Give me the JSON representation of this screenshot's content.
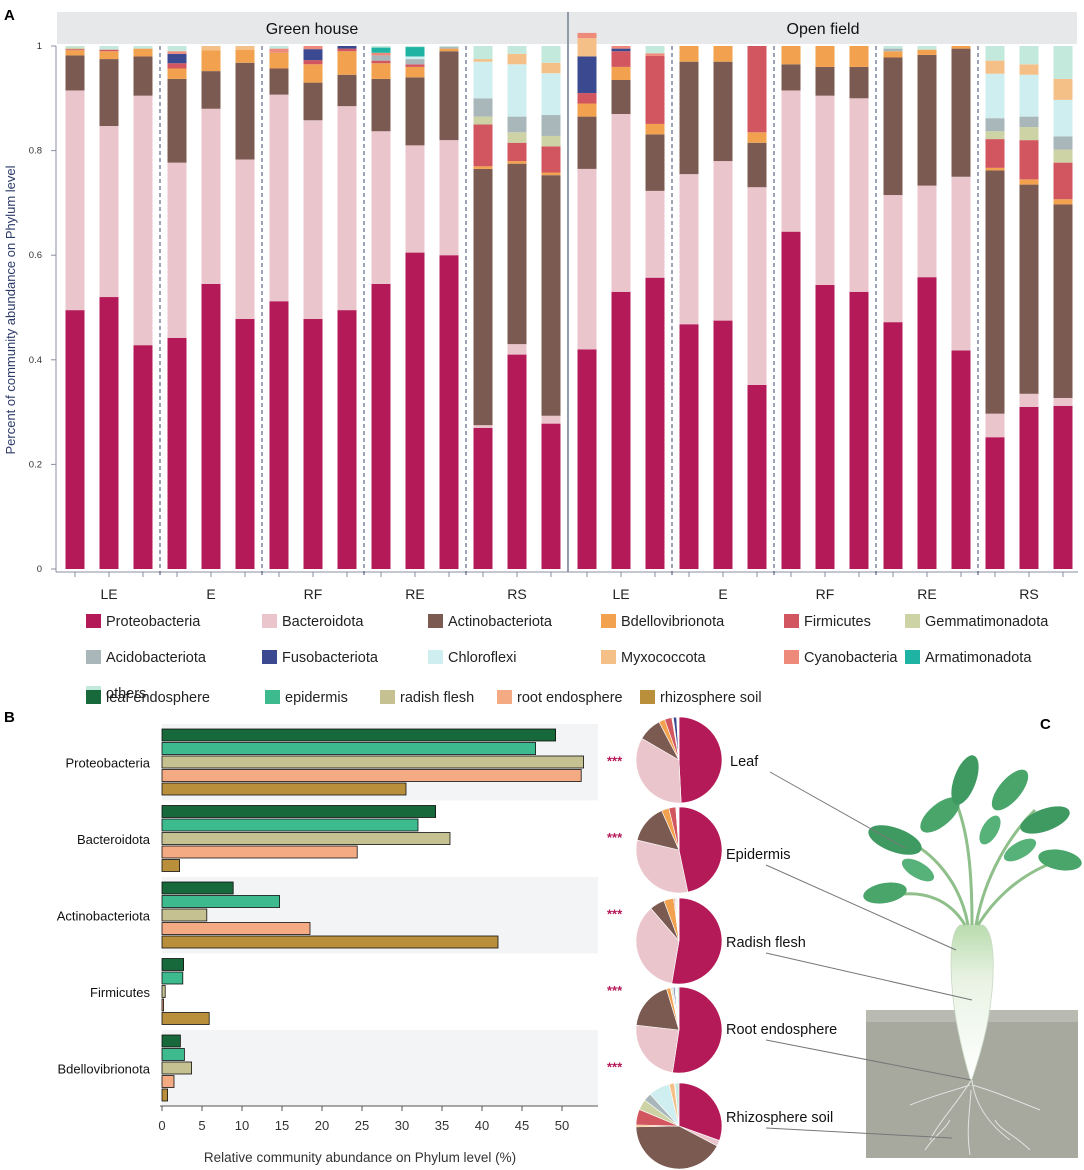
{
  "panels": {
    "a": "A",
    "b": "B",
    "c": "C"
  },
  "chart_data": [
    {
      "type": "bar",
      "subtype": "stacked-100",
      "panel": "A",
      "ylabel": "Percent of community abundance on Phylum level",
      "ylim": [
        0,
        1
      ],
      "yticks": [
        "0",
        "0.2",
        "0.4",
        "0.6",
        "0.8",
        "1"
      ],
      "ytick_values": [
        0,
        0.2,
        0.4,
        0.6,
        0.8,
        1
      ],
      "legend_position": "bottom",
      "facets": [
        {
          "name": "Green house",
          "groups": [
            {
              "label": "LE",
              "bars": [
                [
                  0.495,
                  0.42,
                  0.067,
                  0.01,
                  0.002,
                  0.003,
                  0,
                  0,
                  0,
                  0,
                  0,
                  0,
                  0.003
                ],
                [
                  0.52,
                  0.327,
                  0.128,
                  0.015,
                  0.003,
                  0,
                  0,
                  0,
                  0,
                  0,
                  0,
                  0,
                  0.007
                ],
                [
                  0.428,
                  0.477,
                  0.075,
                  0.015,
                  0,
                  0,
                  0,
                  0,
                  0,
                  0,
                  0,
                  0,
                  0.005
                ]
              ]
            },
            {
              "label": "E",
              "bars": [
                [
                  0.442,
                  0.335,
                  0.16,
                  0.02,
                  0.01,
                  0,
                  0,
                  0.018,
                  0,
                  0,
                  0.005,
                  0,
                  0.01
                ],
                [
                  0.545,
                  0.335,
                  0.072,
                  0.04,
                  0,
                  0,
                  0,
                  0,
                  0,
                  0.008,
                  0,
                  0,
                  0
                ],
                [
                  0.478,
                  0.305,
                  0.185,
                  0.025,
                  0,
                  0,
                  0,
                  0,
                  0,
                  0.007,
                  0,
                  0,
                  0
                ]
              ]
            },
            {
              "label": "RF",
              "bars": [
                [
                  0.512,
                  0.395,
                  0.05,
                  0.03,
                  0,
                  0,
                  0,
                  0,
                  0,
                  0,
                  0.008,
                  0,
                  0.005
                ],
                [
                  0.478,
                  0.38,
                  0.072,
                  0.035,
                  0.008,
                  0,
                  0,
                  0.021,
                  0,
                  0,
                  0.006,
                  0,
                  0
                ],
                [
                  0.495,
                  0.39,
                  0.06,
                  0.045,
                  0.005,
                  0,
                  0,
                  0.005,
                  0,
                  0,
                  0,
                  0,
                  0
                ]
              ]
            },
            {
              "label": "RE",
              "bars": [
                [
                  0.545,
                  0.292,
                  0.1,
                  0.03,
                  0.005,
                  0,
                  0.01,
                  0,
                  0,
                  0,
                  0.005,
                  0.01,
                  0.003
                ],
                [
                  0.605,
                  0.205,
                  0.13,
                  0.02,
                  0.005,
                  0,
                  0.01,
                  0,
                  0.005,
                  0,
                  0,
                  0.018,
                  0.002
                ],
                [
                  0.6,
                  0.22,
                  0.17,
                  0.005,
                  0,
                  0,
                  0.003,
                  0,
                  0,
                  0,
                  0,
                  0,
                  0.002
                ]
              ]
            },
            {
              "label": "RS",
              "bars": [
                [
                  0.27,
                  0.005,
                  0.49,
                  0.005,
                  0.08,
                  0.015,
                  0.035,
                  0,
                  0.07,
                  0.005,
                  0,
                  0,
                  0.025
                ],
                [
                  0.41,
                  0.02,
                  0.345,
                  0.005,
                  0.035,
                  0.02,
                  0.03,
                  0,
                  0.1,
                  0.02,
                  0,
                  0,
                  0.015
                ],
                [
                  0.278,
                  0.015,
                  0.46,
                  0.005,
                  0.05,
                  0.02,
                  0.04,
                  0,
                  0.08,
                  0.02,
                  0,
                  0,
                  0.032
                ]
              ]
            }
          ]
        },
        {
          "name": "Open field",
          "groups": [
            {
              "label": "LE",
              "bars": [
                [
                  0.42,
                  0.345,
                  0.1,
                  0.025,
                  0.02,
                  0,
                  0,
                  0.07,
                  0,
                  0.035,
                  0.01,
                  0,
                  0
                ],
                [
                  0.53,
                  0.34,
                  0.065,
                  0.025,
                  0.03,
                  0,
                  0,
                  0.005,
                  0,
                  0,
                  0.005,
                  0,
                  0
                ],
                [
                  0.557,
                  0.166,
                  0.108,
                  0.02,
                  0.13,
                  0,
                  0,
                  0,
                  0,
                  0,
                  0.005,
                  0,
                  0.014
                ]
              ]
            },
            {
              "label": "E",
              "bars": [
                [
                  0.468,
                  0.287,
                  0.215,
                  0.03,
                  0,
                  0,
                  0,
                  0,
                  0,
                  0,
                  0,
                  0,
                  0
                ],
                [
                  0.475,
                  0.305,
                  0.19,
                  0.03,
                  0,
                  0,
                  0,
                  0,
                  0,
                  0,
                  0,
                  0,
                  0
                ],
                [
                  0.352,
                  0.378,
                  0.085,
                  0.02,
                  0.165,
                  0,
                  0,
                  0,
                  0,
                  0,
                  0,
                  0,
                  0
                ]
              ]
            },
            {
              "label": "RF",
              "bars": [
                [
                  0.645,
                  0.27,
                  0.05,
                  0.035,
                  0,
                  0,
                  0,
                  0,
                  0,
                  0,
                  0,
                  0,
                  0
                ],
                [
                  0.543,
                  0.362,
                  0.055,
                  0.04,
                  0,
                  0,
                  0,
                  0,
                  0,
                  0,
                  0,
                  0,
                  0
                ],
                [
                  0.53,
                  0.37,
                  0.06,
                  0.04,
                  0,
                  0,
                  0,
                  0,
                  0,
                  0,
                  0,
                  0,
                  0
                ]
              ]
            },
            {
              "label": "RE",
              "bars": [
                [
                  0.472,
                  0.243,
                  0.263,
                  0.012,
                  0,
                  0,
                  0.005,
                  0,
                  0,
                  0,
                  0,
                  0,
                  0.005
                ],
                [
                  0.558,
                  0.175,
                  0.25,
                  0.01,
                  0,
                  0,
                  0,
                  0,
                  0,
                  0,
                  0,
                  0,
                  0.007
                ],
                [
                  0.418,
                  0.332,
                  0.245,
                  0.005,
                  0,
                  0,
                  0,
                  0,
                  0,
                  0,
                  0,
                  0,
                  0
                ]
              ]
            },
            {
              "label": "RS",
              "bars": [
                [
                  0.252,
                  0.045,
                  0.465,
                  0.005,
                  0.055,
                  0.015,
                  0.025,
                  0,
                  0.085,
                  0.025,
                  0,
                  0,
                  0.028
                ],
                [
                  0.31,
                  0.025,
                  0.4,
                  0.01,
                  0.075,
                  0.025,
                  0.02,
                  0,
                  0.08,
                  0.02,
                  0,
                  0,
                  0.035
                ],
                [
                  0.312,
                  0.015,
                  0.37,
                  0.01,
                  0.07,
                  0.025,
                  0.025,
                  0,
                  0.07,
                  0.04,
                  0,
                  0,
                  0.063
                ]
              ]
            }
          ]
        }
      ],
      "series": [
        {
          "name": "Proteobacteria",
          "color": "#b51a58"
        },
        {
          "name": "Bacteroidota",
          "color": "#eac5cc"
        },
        {
          "name": "Actinobacteriota",
          "color": "#7b5a52"
        },
        {
          "name": "Bdellovibrionota",
          "color": "#f2a24e"
        },
        {
          "name": "Firmicutes",
          "color": "#d2565f"
        },
        {
          "name": "Gemmatimonadota",
          "color": "#cdd3a4"
        },
        {
          "name": "Acidobacteriota",
          "color": "#a9b7ba"
        },
        {
          "name": "Fusobacteriota",
          "color": "#3b4990"
        },
        {
          "name": "Chloroflexi",
          "color": "#cfeeef"
        },
        {
          "name": "Myxococcota",
          "color": "#f5c088"
        },
        {
          "name": "Cyanobacteria",
          "color": "#ee8a7a"
        },
        {
          "name": "Armatimonadota",
          "color": "#1fb3a4"
        },
        {
          "name": "others",
          "color": "#c3e8dc"
        }
      ]
    },
    {
      "type": "bar",
      "subtype": "grouped-horizontal",
      "panel": "B",
      "xlabel": "Relative community abundance on Phylum level (%)",
      "xlim": [
        0,
        54
      ],
      "xticks": [
        0,
        5,
        10,
        15,
        20,
        25,
        30,
        35,
        40,
        45,
        50
      ],
      "categories": [
        "Proteobacteria",
        "Bacteroidota",
        "Actinobacteriota",
        "Firmicutes",
        "Bdellovibrionota"
      ],
      "significance": [
        "***",
        "***",
        "***",
        "***",
        "***"
      ],
      "series": [
        {
          "name": "leaf endosphere",
          "color": "#17683a",
          "values": [
            49.2,
            34.2,
            8.9,
            2.7,
            2.3
          ]
        },
        {
          "name": "epidermis",
          "color": "#3dbb8f",
          "values": [
            46.7,
            32.0,
            14.7,
            2.6,
            2.8
          ]
        },
        {
          "name": "radish flesh",
          "color": "#c6c191",
          "values": [
            52.7,
            36.0,
            5.6,
            0.4,
            3.7
          ]
        },
        {
          "name": "root endosphere",
          "color": "#f4ab84",
          "values": [
            52.4,
            24.4,
            18.5,
            0.2,
            1.5
          ]
        },
        {
          "name": "rhizosphere soil",
          "color": "#b98f3c",
          "values": [
            30.5,
            2.2,
            42.0,
            5.9,
            0.7
          ]
        }
      ]
    },
    {
      "type": "pie",
      "panel": "C",
      "pies": [
        {
          "label": "Leaf",
          "values": [
            49.2,
            34.2,
            8.9,
            2.3,
            2.7,
            0.3,
            0.3,
            1.2,
            0.2,
            0.3,
            0.2,
            0.1,
            0.1
          ]
        },
        {
          "label": "Epidermis",
          "values": [
            46.7,
            32.0,
            14.7,
            2.8,
            2.6,
            0.3,
            0.3,
            0.2,
            0.2,
            0.1,
            0.1,
            0,
            0
          ]
        },
        {
          "label": "Radish flesh",
          "values": [
            52.7,
            36.0,
            5.6,
            3.7,
            0.4,
            0.4,
            0.3,
            0.3,
            0.2,
            0.2,
            0.1,
            0.1,
            0
          ]
        },
        {
          "label": "Root endosphere",
          "values": [
            52.4,
            24.4,
            18.5,
            1.5,
            0.2,
            0.5,
            0.4,
            0.5,
            0.4,
            0.2,
            0.2,
            0.2,
            0.6
          ]
        },
        {
          "label": "Rhizosphere soil",
          "values": [
            30.5,
            2.2,
            42.0,
            0.7,
            5.9,
            4.0,
            3.0,
            0,
            8.0,
            2.0,
            0.2,
            0,
            1.5
          ]
        }
      ]
    }
  ]
}
